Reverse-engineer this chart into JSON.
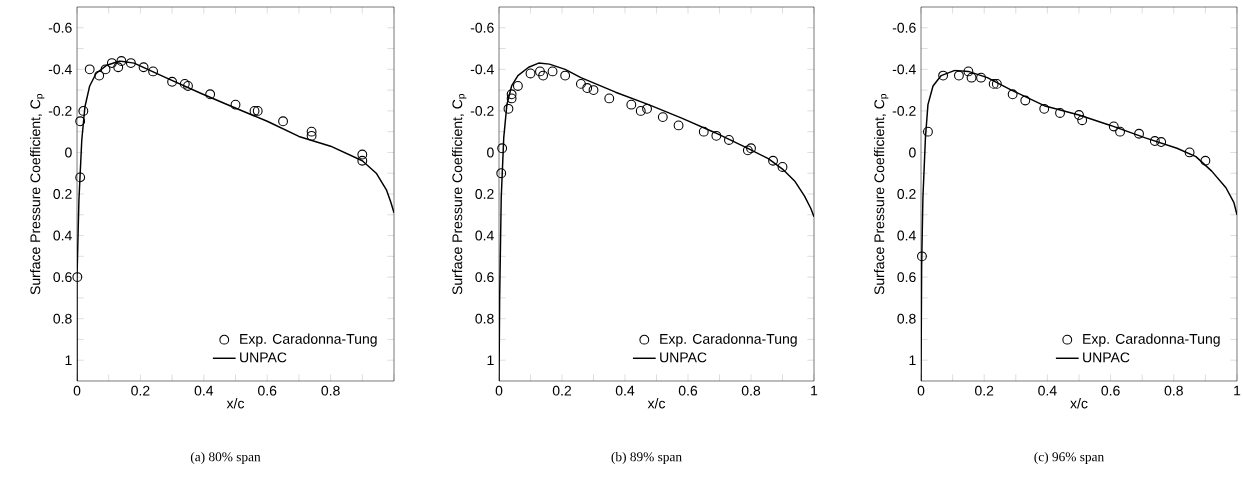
{
  "chart_data": [
    {
      "type": "line",
      "xlabel": "x/c",
      "ylabel": "Surface Pressure Coefficient, C$_{p}$",
      "annotations": [
        "(a) 80% span"
      ],
      "legend": "bottom right",
      "xlim": [
        0,
        1
      ],
      "ylim": [
        1.1,
        -0.7
      ],
      "xticks": [
        0,
        {
          "value": 0.1,
          "label": null
        },
        0.2,
        {
          "value": 0.3,
          "label": null
        },
        0.4,
        {
          "value": 0.5,
          "label": null
        },
        0.6,
        {
          "value": 0.7,
          "label": null
        },
        0.8,
        {
          "value": 0.9,
          "label": null
        },
        {
          "value": 1,
          "label": null
        }
      ],
      "yticks": [
        -0.6,
        {
          "value": -0.5,
          "label": null
        },
        -0.4,
        {
          "value": -0.3,
          "label": null
        },
        -0.2,
        {
          "value": -0.1,
          "label": null
        },
        0,
        {
          "value": 0.1,
          "label": null
        },
        0.2,
        {
          "value": 0.3,
          "label": null
        },
        0.4,
        {
          "value": 0.5,
          "label": null
        },
        0.6,
        {
          "value": 0.7,
          "label": null
        },
        0.8,
        {
          "value": 0.9,
          "label": null
        },
        1
      ],
      "series": [
        {
          "name": "Exp. Caradonna-Tung",
          "type": "scatter",
          "marker": "circle",
          "color": "#000000",
          "x": [
            0.001,
            0.01,
            0.01,
            0.02,
            0.04,
            0.07,
            0.09,
            0.11,
            0.13,
            0.14,
            0.17,
            0.21,
            0.24,
            0.3,
            0.34,
            0.35,
            0.42,
            0.5,
            0.56,
            0.57,
            0.65,
            0.74,
            0.74,
            0.9,
            0.9
          ],
          "values": [
            0.6,
            0.12,
            -0.15,
            -0.2,
            -0.4,
            -0.37,
            -0.4,
            -0.43,
            -0.41,
            -0.44,
            -0.43,
            -0.41,
            -0.39,
            -0.34,
            -0.33,
            -0.32,
            -0.28,
            -0.23,
            -0.2,
            -0.2,
            -0.15,
            -0.1,
            -0.08,
            0.01,
            0.04
          ]
        },
        {
          "name": "UNPAC",
          "color": "#000000",
          "x": [
            0,
            0,
            0.006,
            0.015,
            0.025,
            0.04,
            0.06,
            0.094,
            0.135,
            0.18,
            0.28,
            0.39,
            0.49,
            0.6,
            0.7,
            0.8,
            0.9,
            0.944,
            0.976,
            0.99,
            1.0
          ],
          "values": [
            1.1,
            0.6,
            0.23,
            -0.06,
            -0.22,
            -0.32,
            -0.38,
            -0.42,
            -0.44,
            -0.43,
            -0.36,
            -0.285,
            -0.22,
            -0.15,
            -0.077,
            -0.03,
            0.04,
            0.1,
            0.18,
            0.24,
            0.29
          ]
        }
      ]
    },
    {
      "type": "line",
      "xlabel": "x/c",
      "ylabel": "Surface Pressure Coefficient, C$_{p}$",
      "annotations": [
        "(b) 89% span"
      ],
      "legend": "bottom right",
      "xlim": [
        0,
        1
      ],
      "ylim": [
        1.1,
        -0.7
      ],
      "xticks": [
        0,
        {
          "value": 0.1,
          "label": null
        },
        0.2,
        {
          "value": 0.3,
          "label": null
        },
        0.4,
        {
          "value": 0.5,
          "label": null
        },
        0.6,
        {
          "value": 0.7,
          "label": null
        },
        0.8,
        {
          "value": 0.9,
          "label": null
        },
        1
      ],
      "yticks": [
        -0.6,
        {
          "value": -0.5,
          "label": null
        },
        -0.4,
        {
          "value": -0.3,
          "label": null
        },
        -0.2,
        {
          "value": -0.1,
          "label": null
        },
        0,
        {
          "value": 0.1,
          "label": null
        },
        0.2,
        {
          "value": 0.3,
          "label": null
        },
        0.4,
        {
          "value": 0.5,
          "label": null
        },
        0.6,
        {
          "value": 0.7,
          "label": null
        },
        0.8,
        {
          "value": 0.9,
          "label": null
        },
        1
      ],
      "series": [
        {
          "name": "Exp. Caradonna-Tung",
          "type": "scatter",
          "marker": "circle",
          "color": "#000000",
          "x": [
            0.007,
            0.01,
            0.03,
            0.04,
            0.04,
            0.06,
            0.1,
            0.13,
            0.14,
            0.17,
            0.21,
            0.26,
            0.28,
            0.3,
            0.35,
            0.42,
            0.45,
            0.47,
            0.52,
            0.57,
            0.65,
            0.69,
            0.73,
            0.79,
            0.8,
            0.87,
            0.9
          ],
          "values": [
            0.1,
            -0.02,
            -0.21,
            -0.26,
            -0.28,
            -0.32,
            -0.38,
            -0.39,
            -0.37,
            -0.39,
            -0.37,
            -0.33,
            -0.31,
            -0.3,
            -0.26,
            -0.23,
            -0.2,
            -0.21,
            -0.17,
            -0.13,
            -0.1,
            -0.08,
            -0.06,
            -0.01,
            -0.02,
            0.04,
            0.07
          ]
        },
        {
          "name": "UNPAC",
          "color": "#000000",
          "x": [
            0,
            0.002,
            0.007,
            0.015,
            0.025,
            0.04,
            0.06,
            0.094,
            0.126,
            0.16,
            0.21,
            0.26,
            0.37,
            0.475,
            0.58,
            0.686,
            0.79,
            0.855,
            0.9,
            0.94,
            0.97,
            0.99,
            1.0
          ],
          "values": [
            1.1,
            0.71,
            0.22,
            -0.07,
            -0.23,
            -0.32,
            -0.37,
            -0.41,
            -0.43,
            -0.425,
            -0.4,
            -0.36,
            -0.29,
            -0.23,
            -0.165,
            -0.095,
            -0.02,
            0.03,
            0.08,
            0.14,
            0.21,
            0.27,
            0.31
          ]
        }
      ]
    },
    {
      "type": "line",
      "xlabel": "x/c",
      "ylabel": "Surface Pressure Coefficient, C$_{p}$",
      "annotations": [
        "(c) 96% span"
      ],
      "legend": "bottom right",
      "xlim": [
        0,
        1
      ],
      "ylim": [
        1.1,
        -0.7
      ],
      "xticks": [
        0,
        {
          "value": 0.1,
          "label": null
        },
        0.2,
        {
          "value": 0.3,
          "label": null
        },
        0.4,
        {
          "value": 0.5,
          "label": null
        },
        0.6,
        {
          "value": 0.7,
          "label": null
        },
        0.8,
        {
          "value": 0.9,
          "label": null
        },
        1
      ],
      "yticks": [
        -0.6,
        {
          "value": -0.5,
          "label": null
        },
        -0.4,
        {
          "value": -0.3,
          "label": null
        },
        -0.2,
        {
          "value": -0.1,
          "label": null
        },
        0,
        {
          "value": 0.1,
          "label": null
        },
        0.2,
        {
          "value": 0.3,
          "label": null
        },
        0.4,
        {
          "value": 0.5,
          "label": null
        },
        0.6,
        {
          "value": 0.7,
          "label": null
        },
        0.8,
        {
          "value": 0.9,
          "label": null
        },
        1
      ],
      "series": [
        {
          "name": "Exp. Caradonna-Tung",
          "type": "scatter",
          "marker": "circle",
          "color": "#000000",
          "x": [
            0.003,
            0.022,
            0.07,
            0.12,
            0.15,
            0.16,
            0.19,
            0.23,
            0.24,
            0.29,
            0.33,
            0.39,
            0.44,
            0.5,
            0.51,
            0.61,
            0.63,
            0.69,
            0.74,
            0.76,
            0.85,
            0.9
          ],
          "values": [
            0.5,
            -0.1,
            -0.37,
            -0.37,
            -0.39,
            -0.36,
            -0.36,
            -0.33,
            -0.33,
            -0.28,
            -0.25,
            -0.21,
            -0.19,
            -0.18,
            -0.155,
            -0.125,
            -0.1,
            -0.09,
            -0.055,
            -0.05,
            0.0,
            0.04
          ]
        },
        {
          "name": "UNPAC",
          "color": "#000000",
          "x": [
            0,
            0.002,
            0.006,
            0.014,
            0.022,
            0.038,
            0.064,
            0.107,
            0.15,
            0.21,
            0.286,
            0.39,
            0.5,
            0.6,
            0.71,
            0.81,
            0.87,
            0.92,
            0.965,
            0.99,
            1.0
          ],
          "values": [
            1.1,
            0.55,
            0.22,
            -0.07,
            -0.23,
            -0.32,
            -0.37,
            -0.395,
            -0.39,
            -0.36,
            -0.3,
            -0.225,
            -0.18,
            -0.13,
            -0.07,
            -0.02,
            0.02,
            0.09,
            0.17,
            0.24,
            0.3
          ]
        }
      ]
    }
  ]
}
